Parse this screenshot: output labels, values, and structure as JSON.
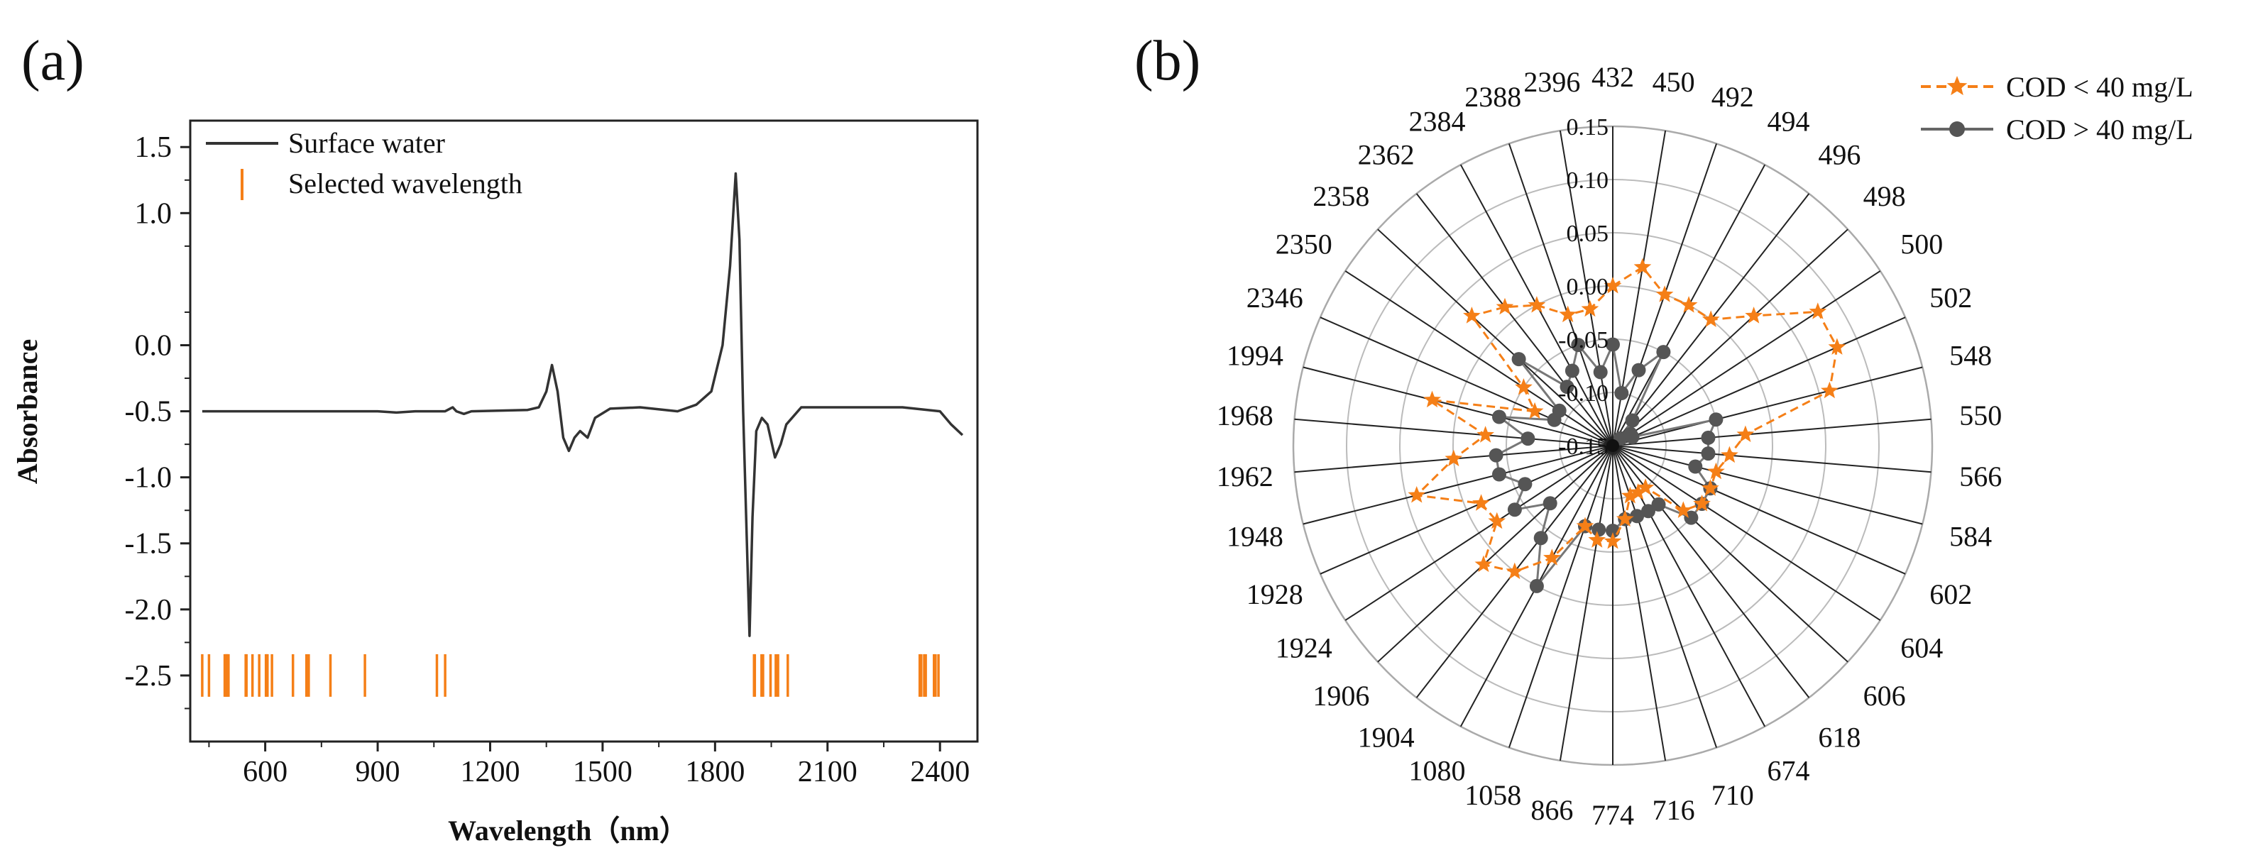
{
  "panel_labels": [
    "(a)",
    "(b)"
  ],
  "chart_data": [
    {
      "type": "line",
      "panel": "(a)",
      "title": "",
      "xlabel": "Wavelength（nm）",
      "ylabel": "Absorbance",
      "xlim": [
        400,
        2500
      ],
      "ylim": [
        -3.0,
        1.7
      ],
      "xticks": [
        600,
        900,
        1200,
        1500,
        1800,
        2100,
        2400
      ],
      "yticks": [
        -2.5,
        -2.0,
        -1.5,
        -1.0,
        -0.5,
        0.0,
        1.0,
        1.5
      ],
      "ytick_labels": [
        "-2.5",
        "-2.0",
        "-1.5",
        "-1.0",
        "-0.5",
        "0.0",
        "1.0",
        "1.5"
      ],
      "legend": {
        "position": "top-left",
        "entries": [
          {
            "label": "Surface water",
            "style": "line",
            "color": "#333333"
          },
          {
            "label": "Selected wavelength",
            "style": "vbar",
            "color": "#f57f17"
          }
        ]
      },
      "series": [
        {
          "name": "Surface water",
          "color": "#333333",
          "points": [
            [
              432,
              -0.5
            ],
            [
              700,
              -0.5
            ],
            [
              900,
              -0.5
            ],
            [
              950,
              -0.51
            ],
            [
              1000,
              -0.5
            ],
            [
              1080,
              -0.5
            ],
            [
              1100,
              -0.47
            ],
            [
              1110,
              -0.5
            ],
            [
              1130,
              -0.52
            ],
            [
              1150,
              -0.5
            ],
            [
              1300,
              -0.49
            ],
            [
              1330,
              -0.47
            ],
            [
              1350,
              -0.35
            ],
            [
              1365,
              -0.15
            ],
            [
              1380,
              -0.35
            ],
            [
              1395,
              -0.7
            ],
            [
              1410,
              -0.8
            ],
            [
              1425,
              -0.7
            ],
            [
              1440,
              -0.65
            ],
            [
              1460,
              -0.7
            ],
            [
              1480,
              -0.55
            ],
            [
              1520,
              -0.48
            ],
            [
              1600,
              -0.47
            ],
            [
              1700,
              -0.5
            ],
            [
              1750,
              -0.45
            ],
            [
              1790,
              -0.35
            ],
            [
              1820,
              0.0
            ],
            [
              1840,
              0.6
            ],
            [
              1855,
              1.3
            ],
            [
              1865,
              0.8
            ],
            [
              1875,
              -0.5
            ],
            [
              1885,
              -1.5
            ],
            [
              1892,
              -2.2
            ],
            [
              1900,
              -1.3
            ],
            [
              1910,
              -0.65
            ],
            [
              1925,
              -0.55
            ],
            [
              1940,
              -0.6
            ],
            [
              1960,
              -0.85
            ],
            [
              1975,
              -0.75
            ],
            [
              1990,
              -0.6
            ],
            [
              2030,
              -0.47
            ],
            [
              2100,
              -0.47
            ],
            [
              2200,
              -0.47
            ],
            [
              2300,
              -0.47
            ],
            [
              2400,
              -0.5
            ],
            [
              2430,
              -0.6
            ],
            [
              2460,
              -0.68
            ]
          ]
        }
      ],
      "selected_wavelengths": [
        432,
        450,
        492,
        494,
        496,
        498,
        500,
        502,
        548,
        550,
        566,
        584,
        602,
        604,
        606,
        618,
        674,
        710,
        716,
        774,
        866,
        1058,
        1080,
        1904,
        1906,
        1924,
        1928,
        1948,
        1962,
        1968,
        1994,
        2346,
        2350,
        2358,
        2362,
        2384,
        2388,
        2396
      ],
      "selected_marker_y": -2.5
    },
    {
      "type": "radar",
      "panel": "(b)",
      "title": "",
      "categories": [
        "432",
        "450",
        "492",
        "494",
        "496",
        "498",
        "500",
        "502",
        "548",
        "550",
        "566",
        "584",
        "602",
        "604",
        "606",
        "618",
        "674",
        "710",
        "716",
        "774",
        "866",
        "1058",
        "1080",
        "1904",
        "1906",
        "1924",
        "1928",
        "1948",
        "1962",
        "1968",
        "1994",
        "2346",
        "2350",
        "2358",
        "2362",
        "2384",
        "2388",
        "2396"
      ],
      "rlim": [
        -0.15,
        0.15
      ],
      "rticks": [
        -0.15,
        -0.1,
        -0.05,
        0.0,
        0.05,
        0.1,
        0.15
      ],
      "rtick_labels": [
        "-0.15",
        "-0.10",
        "-0.05",
        "0.00",
        "0.05",
        "0.10",
        "0.15"
      ],
      "legend": {
        "position": "top-right",
        "entries": [
          {
            "label": "COD < 40 mg/L",
            "marker": "star",
            "color": "#f57f17",
            "dash": true
          },
          {
            "label": "COD > 40 mg/L",
            "marker": "circle",
            "color": "#555555",
            "dash": false
          }
        ]
      },
      "series": [
        {
          "name": "COD < 40 mg/L",
          "color": "#f57f17",
          "marker": "star",
          "values": [
            0.0,
            0.02,
            0.0,
            0.0,
            0.0,
            0.03,
            0.08,
            0.08,
            0.06,
            -0.025,
            -0.04,
            -0.05,
            -0.05,
            -0.05,
            -0.06,
            -0.1,
            -0.1,
            -0.1,
            -0.08,
            -0.06,
            -0.06,
            -0.07,
            -0.03,
            0.0,
            0.015,
            -0.02,
            -0.015,
            0.04,
            0.0,
            -0.03,
            0.025,
            -0.07,
            -0.05,
            0.03,
            0.015,
            0.0,
            -0.02,
            -0.02
          ]
        },
        {
          "name": "COD > 40 mg/L",
          "color": "#555555",
          "marker": "circle",
          "values": [
            -0.055,
            -0.1,
            -0.075,
            -0.05,
            -0.12,
            -0.14,
            -0.13,
            -0.13,
            -0.05,
            -0.06,
            -0.06,
            -0.07,
            -0.05,
            -0.05,
            -0.05,
            -0.08,
            -0.08,
            -0.08,
            -0.08,
            -0.07,
            -0.07,
            -0.07,
            0.0,
            -0.04,
            -0.07,
            -0.04,
            -0.06,
            -0.04,
            -0.04,
            -0.07,
            -0.04,
            -0.09,
            -0.09,
            -0.03,
            -0.08,
            -0.07,
            -0.05,
            -0.08
          ]
        }
      ]
    }
  ]
}
